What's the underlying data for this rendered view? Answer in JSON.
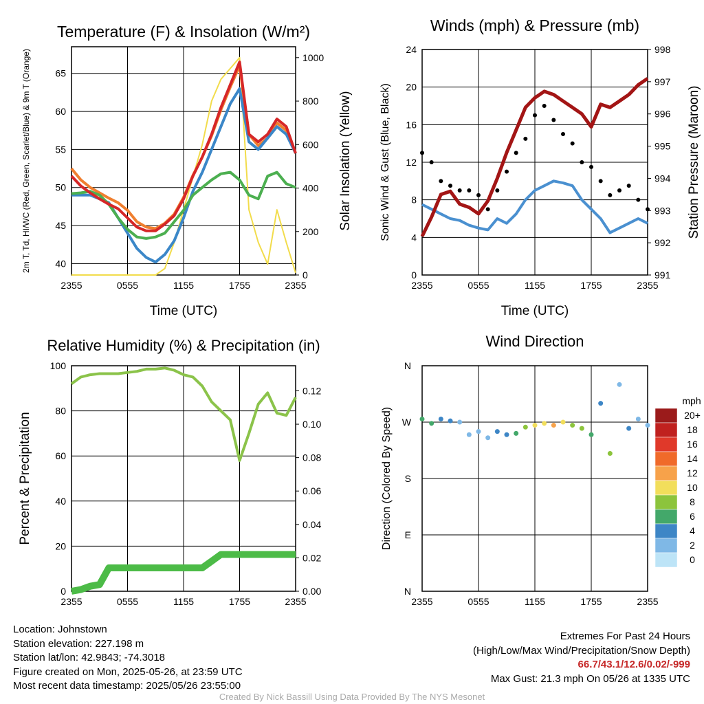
{
  "chart_data": [
    {
      "type": "line",
      "title": "Temperature (F) & Insolation (W/m²)",
      "xlabel": "Time (UTC)",
      "ylabel": "2m T, Td, HI/WC (Red, Green, Scarlet/Blue) & 9m T (Orange)",
      "y2label": "Solar Insolation (Yellow)",
      "x_ticks": [
        "2355",
        "0555",
        "1155",
        "1755",
        "2355"
      ],
      "ylim": [
        38.5,
        68.5
      ],
      "y_ticks": [
        40,
        45,
        50,
        55,
        60,
        65
      ],
      "y2lim": [
        0,
        1050
      ],
      "y2_ticks": [
        0,
        200,
        400,
        600,
        800,
        1000
      ],
      "grid": true,
      "x_hours": [
        0,
        1,
        2,
        3,
        4,
        5,
        6,
        7,
        8,
        9,
        10,
        11,
        12,
        13,
        14,
        15,
        16,
        17,
        18,
        19,
        20,
        21,
        22,
        23,
        24
      ],
      "series": [
        {
          "color": "#d62728",
          "values": [
            51.5,
            50.2,
            49.3,
            48.5,
            47.8,
            47.2,
            46,
            44.8,
            44.3,
            44.3,
            45.2,
            46.3,
            48.5,
            51.5,
            54,
            57,
            60.5,
            63.5,
            66.5,
            57,
            56,
            57,
            59,
            58,
            54.5
          ]
        },
        {
          "color": "#3b87c8",
          "values": [
            49,
            49,
            49,
            48.5,
            48,
            46,
            44,
            42,
            40.8,
            40.2,
            41.2,
            43,
            46,
            49.5,
            52,
            55,
            58,
            61,
            63,
            56,
            55,
            56.5,
            58,
            57,
            54.5
          ]
        },
        {
          "color": "#4caf50",
          "values": [
            49.2,
            49.3,
            49.5,
            49,
            47.8,
            46,
            44.5,
            43.5,
            43.3,
            43.5,
            44,
            45.5,
            47,
            49,
            50,
            51,
            51.8,
            52,
            51,
            49,
            48.5,
            51.5,
            52,
            50.5,
            50
          ]
        },
        {
          "color": "#f07f2f",
          "values": [
            52.5,
            51,
            50,
            49.3,
            48.6,
            48,
            47,
            45.5,
            44.8,
            44.6,
            45.3,
            46.5,
            48.7,
            51.6,
            54,
            56.8,
            60.2,
            63.2,
            66,
            57,
            55.5,
            56.5,
            58.5,
            57.5,
            54.5
          ]
        },
        {
          "color": "#f2dc4b",
          "y_axis": "right",
          "values": [
            0,
            0,
            0,
            0,
            0,
            0,
            0,
            0,
            0,
            0,
            30,
            150,
            300,
            450,
            600,
            800,
            900,
            950,
            1000,
            300,
            150,
            50,
            300,
            150,
            10
          ]
        }
      ]
    },
    {
      "type": "scatter",
      "title": "Winds (mph) & Pressure (mb)",
      "xlabel": "Time (UTC)",
      "ylabel": "Sonic Wind & Gust (Blue, Black)",
      "y2label": "Station Pressure (Maroon)",
      "x_ticks": [
        "2355",
        "0555",
        "1155",
        "1755",
        "2355"
      ],
      "ylim": [
        0,
        24
      ],
      "y_ticks": [
        0,
        4,
        8,
        12,
        16,
        20,
        24
      ],
      "y2lim": [
        991,
        998
      ],
      "y2_ticks": [
        991,
        992,
        993,
        994,
        995,
        996,
        997,
        998
      ],
      "grid": true,
      "x_hours": [
        0,
        1,
        2,
        3,
        4,
        5,
        6,
        7,
        8,
        9,
        10,
        11,
        12,
        13,
        14,
        15,
        16,
        17,
        18,
        19,
        20,
        21,
        22,
        23,
        24
      ],
      "series": [
        {
          "color": "#4a90d0",
          "values": [
            7.5,
            7,
            6.5,
            6,
            5.8,
            5.3,
            5,
            4.8,
            6,
            5.5,
            6.5,
            8,
            9,
            9.5,
            10,
            9.8,
            9.5,
            8,
            7,
            6,
            4.5,
            5,
            5.5,
            6,
            5.5
          ]
        },
        {
          "color": "#000000",
          "values": [
            13,
            12,
            10,
            9.5,
            9,
            9,
            8.5,
            7,
            9,
            11,
            13,
            14.5,
            17,
            18,
            16.5,
            15,
            14,
            12,
            11.5,
            10,
            8.5,
            9,
            9.5,
            8,
            7
          ]
        },
        {
          "color": "#a31515",
          "y_axis": "right",
          "values": [
            992.2,
            992.8,
            993.5,
            993.6,
            993.2,
            993.1,
            992.9,
            993.3,
            994,
            994.8,
            995.5,
            996.2,
            996.5,
            996.7,
            996.6,
            996.4,
            996.2,
            996,
            995.6,
            996.3,
            996.2,
            996.4,
            996.6,
            996.9,
            997.1
          ]
        }
      ]
    },
    {
      "type": "line",
      "title": "Relative Humidity (%) & Precipitation (in)",
      "ylabel": "Percent & Precipitation",
      "x_ticks": [
        "2355",
        "0555",
        "1155",
        "1755",
        "2355"
      ],
      "ylim": [
        0,
        100
      ],
      "y_ticks": [
        0,
        20,
        40,
        60,
        80,
        100
      ],
      "y2lim": [
        0,
        0.135
      ],
      "y2_ticks": [
        "0.00",
        "0.02",
        "0.04",
        "0.06",
        "0.08",
        "0.10",
        "0.12"
      ],
      "grid": true,
      "x_hours": [
        0,
        1,
        2,
        3,
        4,
        5,
        6,
        7,
        8,
        9,
        10,
        11,
        12,
        13,
        14,
        15,
        16,
        17,
        18,
        19,
        20,
        21,
        22,
        23,
        24
      ],
      "series": [
        {
          "color": "#8bc34a",
          "values": [
            92,
            95,
            96,
            96.5,
            96.5,
            96.5,
            97,
            97.5,
            98.5,
            98.5,
            99,
            98,
            96,
            95,
            91,
            84,
            80,
            76,
            58,
            70,
            83,
            88,
            79,
            78,
            86
          ]
        },
        {
          "color": "#4cbb47",
          "y_axis": "right",
          "values": [
            0,
            0.001,
            0.003,
            0.004,
            0.014,
            0.014,
            0.014,
            0.014,
            0.014,
            0.014,
            0.014,
            0.014,
            0.014,
            0.014,
            0.014,
            0.018,
            0.022,
            0.022,
            0.022,
            0.022,
            0.022,
            0.022,
            0.022,
            0.022,
            0.022
          ]
        }
      ]
    },
    {
      "type": "scatter",
      "title": "Wind Direction",
      "ylabel": "Direction (Colored By Speed)",
      "x_ticks": [
        "2355",
        "0555",
        "1155",
        "1755",
        "2355"
      ],
      "y_ticks": [
        "N",
        "E",
        "S",
        "W",
        "N"
      ],
      "ylim": [
        0,
        360
      ],
      "grid": true,
      "x_hours": [
        0,
        1,
        2,
        3,
        4,
        5,
        6,
        7,
        8,
        9,
        10,
        11,
        12,
        13,
        14,
        15,
        16,
        17,
        18,
        19,
        20,
        21,
        22,
        23,
        24
      ],
      "values": [
        275,
        268,
        275,
        272,
        270,
        250,
        255,
        245,
        255,
        250,
        252,
        262,
        265,
        268,
        265,
        270,
        265,
        260,
        250,
        300,
        220,
        330,
        260,
        275,
        265
      ],
      "speed_mph": [
        7,
        6,
        4,
        4,
        3,
        3,
        2,
        3,
        4,
        4,
        6,
        8,
        10,
        11,
        12,
        10,
        8,
        8,
        7,
        4,
        8,
        2,
        4,
        3,
        3
      ],
      "colorbar": {
        "unit": "mph",
        "labels": [
          "20+",
          "18",
          "16",
          "14",
          "12",
          "10",
          "8",
          "6",
          "4",
          "2",
          "0"
        ],
        "colors": [
          "#9b1b1b",
          "#c0211f",
          "#e0392a",
          "#f06a2a",
          "#f7a24a",
          "#f2de5b",
          "#8cc43c",
          "#43a86a",
          "#3d86c6",
          "#7fb8e6",
          "#bde4f7"
        ]
      }
    }
  ],
  "footer": {
    "location": "Location: Johnstown",
    "elevation": "Station elevation: 227.198 m",
    "latlon": "Station lat/lon: 42.9843; -74.3018",
    "created": "Figure created on Mon, 2025-05-26, at 23:59 UTC",
    "recent": "Most recent data timestamp: 2025/05/26 23:55:00",
    "extremes_title": "Extremes For Past 24 Hours",
    "extremes_fields": "(High/Low/Max Wind/Precipitation/Snow Depth)",
    "extremes_values": "66.7/43.1/12.6/0.02/-999",
    "max_gust": "Max Gust: 21.3 mph On 05/26 at 1335 UTC",
    "credit": "Created By Nick Bassill Using Data Provided By The NYS Mesonet"
  }
}
